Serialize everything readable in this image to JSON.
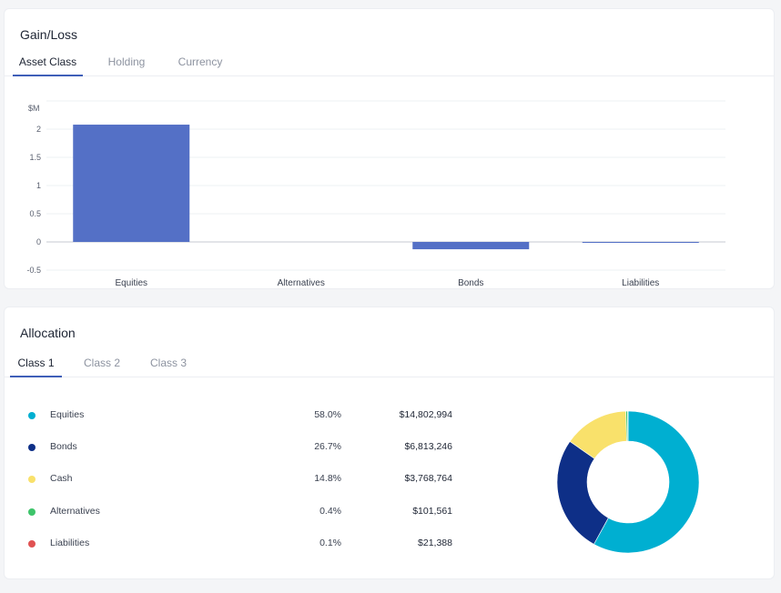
{
  "gain_loss": {
    "title": "Gain/Loss",
    "tabs": [
      {
        "label": "Asset Class",
        "active": true
      },
      {
        "label": "Holding",
        "active": false
      },
      {
        "label": "Currency",
        "active": false
      }
    ]
  },
  "allocation": {
    "title": "Allocation",
    "tabs": [
      {
        "label": "Class 1",
        "active": true
      },
      {
        "label": "Class 2",
        "active": false
      },
      {
        "label": "Class 3",
        "active": false
      }
    ],
    "items": [
      {
        "name": "Equities",
        "percent": "58.0%",
        "value": "$14,802,994",
        "color": "#00afd1"
      },
      {
        "name": "Bonds",
        "percent": "26.7%",
        "value": "$6,813,246",
        "color": "#0e2f87"
      },
      {
        "name": "Cash",
        "percent": "14.8%",
        "value": "$3,768,764",
        "color": "#f9e16b"
      },
      {
        "name": "Alternatives",
        "percent": "0.4%",
        "value": "$101,561",
        "color": "#3dc46a"
      },
      {
        "name": "Liabilities",
        "percent": "0.1%",
        "value": "$21,388",
        "color": "#e05252"
      }
    ]
  },
  "chart_data": [
    {
      "type": "bar",
      "unit_label": "$M",
      "categories": [
        "Equities",
        "Alternatives",
        "Bonds",
        "Liabilities"
      ],
      "values": [
        2.08,
        0.0,
        -0.13,
        -0.01
      ],
      "ylim": [
        -0.5,
        2.5
      ],
      "yticks": [
        "2",
        "1.5",
        "1",
        "0.5",
        "0",
        "-0.5"
      ],
      "ytick_values": [
        2,
        1.5,
        1,
        0.5,
        0,
        -0.5
      ],
      "grid": true,
      "bar_color": "#5470c6"
    },
    {
      "type": "pie",
      "donut": true,
      "labels": [
        "Equities",
        "Bonds",
        "Cash",
        "Alternatives",
        "Liabilities"
      ],
      "values": [
        58.0,
        26.7,
        14.8,
        0.4,
        0.1
      ],
      "colors": [
        "#00afd1",
        "#0e2f87",
        "#f9e16b",
        "#3dc46a",
        "#e05252"
      ]
    }
  ]
}
